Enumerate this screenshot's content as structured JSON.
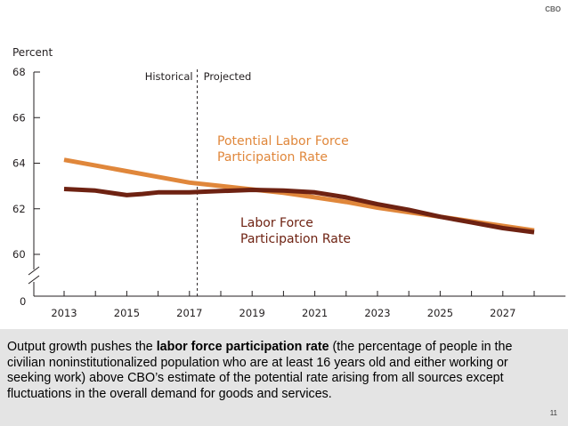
{
  "logo": {
    "text": "CBO"
  },
  "page_number": "11",
  "caption": {
    "part1": "Output growth pushes the ",
    "bold": "labor force participation rate",
    "part2": " (the percentage of people in the civilian noninstitutionalized population who are at least 16 years old and either working or seeking work) above CBO’s estimate of the potential rate arising from all sources except fluctuations in the overall demand for goods and services."
  },
  "chart_data": {
    "type": "line",
    "ylabel": "Percent",
    "ylim": [
      60,
      68
    ],
    "y_ticks": [
      "60",
      "62",
      "64",
      "66",
      "68"
    ],
    "y_break_label": "0",
    "xlim": [
      2012.5,
      2029
    ],
    "x_ticks": [
      "2013",
      "2015",
      "2017",
      "2019",
      "2021",
      "2023",
      "2025",
      "2027"
    ],
    "divider": {
      "x": 2017.25,
      "left_label": "Historical",
      "right_label": "Projected"
    },
    "grid": false,
    "series": [
      {
        "name": "Potential Labor Force Participation Rate",
        "label_lines": [
          "Potential Labor Force",
          "Participation Rate"
        ],
        "color": "#e0873b",
        "x": [
          2013,
          2014,
          2015,
          2016,
          2017,
          2018,
          2019,
          2020,
          2021,
          2022,
          2023,
          2024,
          2025,
          2026,
          2027,
          2028
        ],
        "y": [
          64.15,
          63.9,
          63.65,
          63.4,
          63.15,
          63.0,
          62.85,
          62.7,
          62.5,
          62.3,
          62.05,
          61.85,
          61.65,
          61.45,
          61.25,
          61.05
        ]
      },
      {
        "name": "Labor Force Participation Rate",
        "label_lines": [
          "Labor Force",
          "Participation Rate"
        ],
        "color": "#6e2212",
        "x": [
          2013,
          2014,
          2015,
          2015.5,
          2016,
          2017,
          2018,
          2019,
          2020,
          2021,
          2022,
          2023,
          2024,
          2025,
          2026,
          2027,
          2028
        ],
        "y": [
          62.87,
          62.8,
          62.6,
          62.65,
          62.72,
          62.72,
          62.78,
          62.83,
          62.8,
          62.72,
          62.5,
          62.2,
          61.95,
          61.65,
          61.4,
          61.15,
          60.97
        ]
      }
    ]
  }
}
